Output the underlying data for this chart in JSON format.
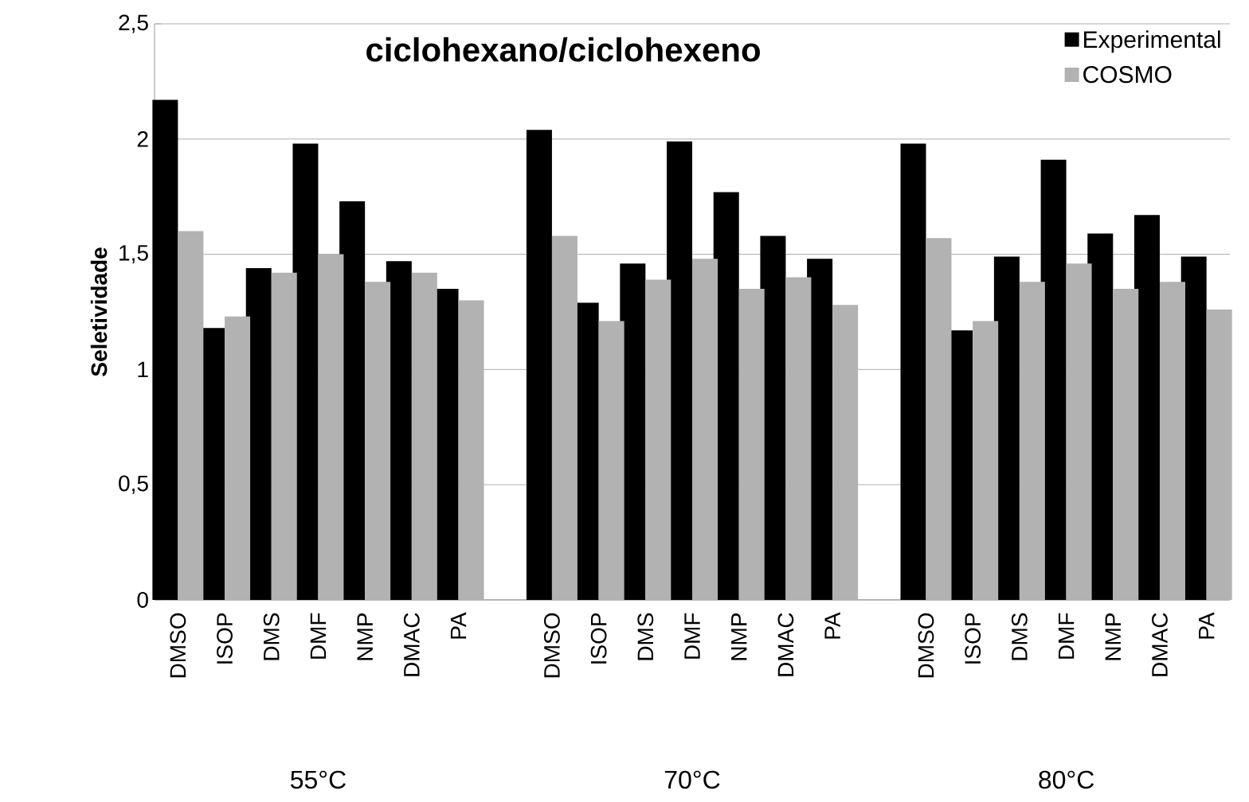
{
  "chart_data": {
    "type": "bar",
    "title": "ciclohexano/ciclohexeno",
    "ylabel": "Seletividade",
    "categories": [
      "DMSO",
      "ISOP",
      "DMS",
      "DMF",
      "NMP",
      "DMAC",
      "PA",
      null,
      "DMSO",
      "ISOP",
      "DMS",
      "DMF",
      "NMP",
      "DMAC",
      "PA",
      null,
      "DMSO",
      "ISOP",
      "DMS",
      "DMF",
      "NMP",
      "DMAC",
      "PA"
    ],
    "series": [
      {
        "name": "Experimental",
        "color": "#000000",
        "values": [
          2.17,
          1.18,
          1.44,
          1.98,
          1.73,
          1.47,
          1.35,
          null,
          2.04,
          1.29,
          1.46,
          1.99,
          1.77,
          1.58,
          1.48,
          null,
          1.98,
          1.17,
          1.49,
          1.91,
          1.59,
          1.67,
          1.49
        ]
      },
      {
        "name": "COSMO",
        "color": "#b2b2b2",
        "values": [
          1.6,
          1.23,
          1.42,
          1.5,
          1.38,
          1.42,
          1.3,
          null,
          1.58,
          1.21,
          1.39,
          1.48,
          1.35,
          1.4,
          1.28,
          null,
          1.57,
          1.21,
          1.38,
          1.46,
          1.35,
          1.38,
          1.26
        ]
      }
    ],
    "annotations": [
      "55°C",
      "70°C",
      "80°C"
    ],
    "ylim": [
      0,
      2.5
    ],
    "yticks": [
      0,
      {
        "value": 0.5,
        "label": "0,5"
      },
      1,
      {
        "value": 1.5,
        "label": "1,5"
      },
      2,
      {
        "value": 2.5,
        "label": "2,5"
      }
    ],
    "grid": "y",
    "legend": "top right"
  }
}
